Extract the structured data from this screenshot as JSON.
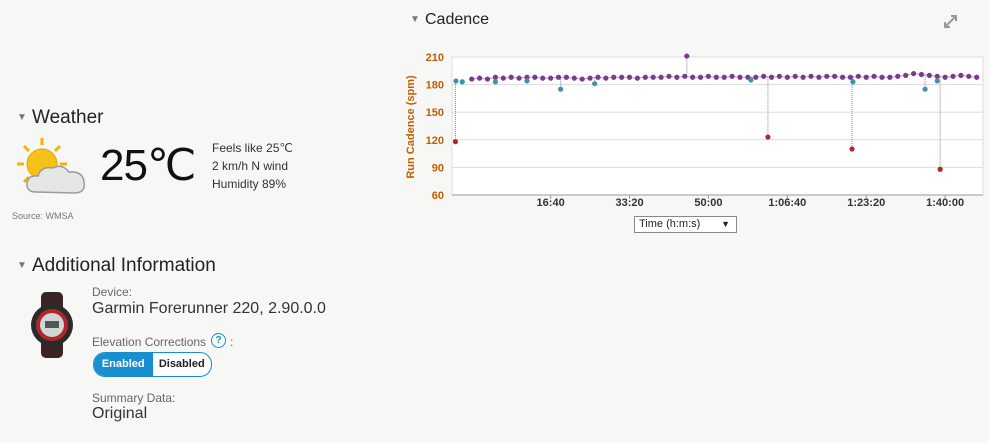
{
  "weather": {
    "title": "Weather",
    "temperature": "25℃",
    "feels_like": "Feels like 25℃",
    "wind": "2 km/h N wind",
    "humidity": "Humidity 89%",
    "source": "Source: WMSA"
  },
  "additional_information": {
    "title": "Additional Information",
    "device_label": "Device:",
    "device": "Garmin Forerunner 220, 2.90.0.0",
    "elevation_label": "Elevation Corrections",
    "help": "?",
    "colon": ":",
    "toggle": {
      "enabled": "Enabled",
      "disabled": "Disabled"
    },
    "summary_label": "Summary Data:",
    "summary": "Original"
  },
  "chart_data": {
    "type": "scatter",
    "title": "Cadence",
    "ylabel": "Run Cadence (spm)",
    "xlabel": "Time (h:m:s)",
    "xlim": [
      -250,
      6480
    ],
    "ylim": [
      60,
      210
    ],
    "yticks": [
      60,
      90,
      120,
      150,
      180,
      210
    ],
    "xticks": [
      {
        "value": 1000,
        "label": "16:40"
      },
      {
        "value": 2000,
        "label": "33:20"
      },
      {
        "value": 3000,
        "label": "50:00"
      },
      {
        "value": 4000,
        "label": "1:06:40"
      },
      {
        "value": 5000,
        "label": "1:23:20"
      },
      {
        "value": 6000,
        "label": "1:40:00"
      }
    ],
    "grid": true,
    "series": [
      {
        "color": "#7a3b8f",
        "x": [
          0,
          100,
          200,
          300,
          400,
          500,
          600,
          700,
          800,
          900,
          1000,
          1100,
          1200,
          1300,
          1400,
          1500,
          1600,
          1700,
          1800,
          1900,
          2000,
          2100,
          2200,
          2300,
          2400,
          2500,
          2600,
          2700,
          2800,
          2900,
          3000,
          3100,
          3200,
          3300,
          3400,
          3500,
          3600,
          3700,
          3800,
          3900,
          4000,
          4100,
          4200,
          4300,
          4400,
          4500,
          4600,
          4700,
          4800,
          4900,
          5000,
          5100,
          5200,
          5300,
          5400,
          5500,
          5600,
          5700,
          5800,
          5900,
          6000,
          6100,
          6200,
          6300,
          6400
        ],
        "values": [
          186,
          187,
          186,
          188,
          187,
          188,
          187,
          188,
          188,
          187,
          187,
          188,
          188,
          187,
          186,
          187,
          188,
          187,
          188,
          188,
          188,
          187,
          188,
          188,
          188,
          189,
          188,
          189,
          188,
          188,
          189,
          188,
          188,
          189,
          188,
          188,
          188,
          189,
          188,
          189,
          188,
          189,
          188,
          189,
          188,
          189,
          189,
          188,
          188,
          189,
          188,
          189,
          188,
          188,
          189,
          190,
          192,
          191,
          190,
          189,
          188,
          189,
          190,
          189,
          188
        ]
      },
      {
        "color": "#3f93a8",
        "x": [
          -200,
          -120,
          300,
          700,
          1127,
          1558,
          3538,
          4832,
          5746,
          5900
        ],
        "values": [
          184,
          183,
          183,
          184,
          175,
          181,
          185,
          183,
          175,
          184
        ]
      },
      {
        "color": "#b2272d",
        "x": [
          -206,
          3754,
          4820,
          5937
        ],
        "values": [
          118,
          123,
          110,
          88
        ]
      },
      {
        "color": "#7a3b8f",
        "x": [
          2726
        ],
        "values": [
          211
        ]
      }
    ]
  }
}
